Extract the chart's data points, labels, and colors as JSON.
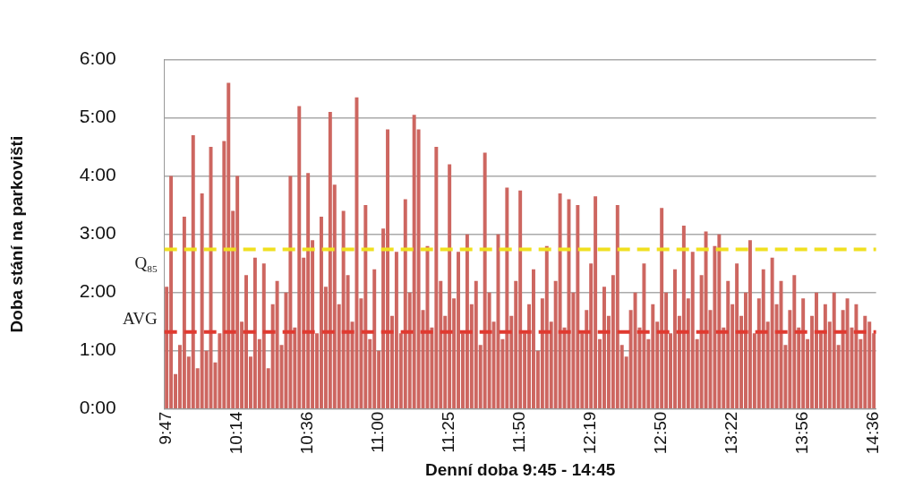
{
  "chart_data": {
    "type": "bar",
    "xlabel": "Denní doba 9:45 - 14:45",
    "ylabel": "Doba stání na parkovišti",
    "categories": [
      "9:47",
      null,
      null,
      null,
      null,
      null,
      null,
      null,
      null,
      null,
      null,
      null,
      null,
      null,
      null,
      null,
      "10:14",
      null,
      null,
      null,
      null,
      null,
      null,
      null,
      null,
      null,
      null,
      null,
      null,
      null,
      null,
      null,
      "10:36",
      null,
      null,
      null,
      null,
      null,
      null,
      null,
      null,
      null,
      null,
      null,
      null,
      null,
      null,
      null,
      "11:00",
      null,
      null,
      null,
      null,
      null,
      null,
      null,
      null,
      null,
      null,
      null,
      null,
      null,
      null,
      null,
      "11:25",
      null,
      null,
      null,
      null,
      null,
      null,
      null,
      null,
      null,
      null,
      null,
      null,
      null,
      null,
      null,
      "11:50",
      null,
      null,
      null,
      null,
      null,
      null,
      null,
      null,
      null,
      null,
      null,
      null,
      null,
      null,
      null,
      "12:19",
      null,
      null,
      null,
      null,
      null,
      null,
      null,
      null,
      null,
      null,
      null,
      null,
      null,
      null,
      null,
      "12:50",
      null,
      null,
      null,
      null,
      null,
      null,
      null,
      null,
      null,
      null,
      null,
      null,
      null,
      null,
      null,
      "13:22",
      null,
      null,
      null,
      null,
      null,
      null,
      null,
      null,
      null,
      null,
      null,
      null,
      null,
      null,
      null,
      "13:56",
      null,
      null,
      null,
      null,
      null,
      null,
      null,
      null,
      null,
      null,
      null,
      null,
      null,
      null,
      null,
      "14:36"
    ],
    "values": [
      2.1,
      4.0,
      0.6,
      1.1,
      3.3,
      0.9,
      4.7,
      0.7,
      3.7,
      1.0,
      4.5,
      0.8,
      1.3,
      4.6,
      5.6,
      3.4,
      4.0,
      1.5,
      2.3,
      0.9,
      2.6,
      1.2,
      2.5,
      0.7,
      1.8,
      2.2,
      1.1,
      2.0,
      4.0,
      1.4,
      5.2,
      2.6,
      4.05,
      2.9,
      1.3,
      3.3,
      2.1,
      5.1,
      3.85,
      1.8,
      3.4,
      2.3,
      1.5,
      5.35,
      1.9,
      3.5,
      1.2,
      2.4,
      1.0,
      3.1,
      4.8,
      1.6,
      2.7,
      1.3,
      3.6,
      2.0,
      5.05,
      4.8,
      1.7,
      2.8,
      1.4,
      4.5,
      2.2,
      1.6,
      4.2,
      1.9,
      2.7,
      1.3,
      3.0,
      1.8,
      2.2,
      1.1,
      4.4,
      2.0,
      1.5,
      3.0,
      1.2,
      3.8,
      1.6,
      2.2,
      3.75,
      1.3,
      1.8,
      2.4,
      1.0,
      1.9,
      2.8,
      1.5,
      2.2,
      3.7,
      1.4,
      3.6,
      2.0,
      3.5,
      1.3,
      1.7,
      2.5,
      3.65,
      1.2,
      2.1,
      1.6,
      2.3,
      3.5,
      1.1,
      0.9,
      1.7,
      2.0,
      1.4,
      2.5,
      1.2,
      1.8,
      1.5,
      3.45,
      2.0,
      1.3,
      2.4,
      1.6,
      3.15,
      1.9,
      2.7,
      1.2,
      2.3,
      3.05,
      1.7,
      2.8,
      3.0,
      1.4,
      2.2,
      1.8,
      2.5,
      1.6,
      2.0,
      2.9,
      1.3,
      1.9,
      2.4,
      1.5,
      2.6,
      1.8,
      2.2,
      1.1,
      1.7,
      2.3,
      1.4,
      1.9,
      1.2,
      1.6,
      2.0,
      1.3,
      1.8,
      1.5,
      2.0,
      1.1,
      1.7,
      1.9,
      1.4,
      1.8,
      1.2,
      1.6,
      1.5,
      1.3
    ],
    "color": "#cd6660",
    "ylim": [
      0,
      6
    ],
    "yticks": [
      {
        "value": 0,
        "label": "0:00"
      },
      {
        "value": 1,
        "label": "1:00"
      },
      {
        "value": 2,
        "label": "2:00"
      },
      {
        "value": 3,
        "label": "3:00"
      },
      {
        "value": 4,
        "label": "4:00"
      },
      {
        "value": 5,
        "label": "5:00"
      },
      {
        "value": 6,
        "label": "6:00"
      }
    ],
    "grid": "y",
    "legend": false,
    "ref_lines": [
      {
        "axis": "y",
        "value": 2.74,
        "label": "Q$_{85}$",
        "color": "#f0e020",
        "line_style": "dashed"
      },
      {
        "axis": "y",
        "value": 1.32,
        "label": "AVG",
        "color": "#e03a30",
        "line_style": "dashed"
      }
    ]
  }
}
